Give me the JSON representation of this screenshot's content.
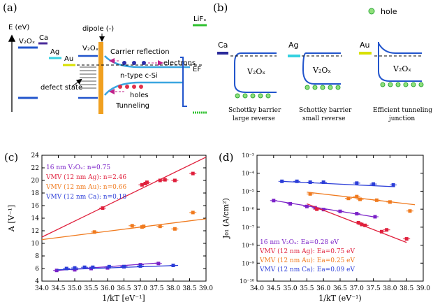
{
  "panels": {
    "a": {
      "label": "(a)",
      "energy_axis": "E (eV)",
      "materials": {
        "v2ox_left": "V₂Oₓ",
        "ca": "Ca",
        "ag": "Ag",
        "au": "Au",
        "v2ox_mid": "V₂Oₓ",
        "lifx": "LiFₓ"
      },
      "dipole": "dipole (-)",
      "carrier_reflection": "Carrier reflection",
      "electrons": "electrons",
      "ef": "EF",
      "ntype": "n-type c-Si",
      "defect_state": "defect state",
      "holes": "holes",
      "tunneling": "Tunneling",
      "colors": {
        "ca": "#4a2b9a",
        "ag": "#35d1e0",
        "au": "#d8e000",
        "lifx": "#2fc22f",
        "v2ox": "#2255cc",
        "dipole": "#f0a020",
        "band": "#3aa6e0",
        "electron": "#2d2da8",
        "hole": "#e0304a"
      }
    },
    "b": {
      "label": "(b)",
      "legend_hole": "hole",
      "columns": [
        {
          "metal": "Ca",
          "oxide": "V₂Oₓ",
          "caption1": "Schottky barrier",
          "caption2": "large reverse",
          "color": "#2a2a9a"
        },
        {
          "metal": "Ag",
          "oxide": "V₂Oₓ",
          "caption1": "Schottky barrier",
          "caption2": "small reverse",
          "color": "#35d1e0"
        },
        {
          "metal": "Au",
          "oxide": "V₂Oₓ",
          "caption1": "Efficient tunneling",
          "caption2": "junction",
          "color": "#d8e000"
        }
      ]
    }
  },
  "chart_data": [
    {
      "panel": "(c)",
      "type": "scatter",
      "xlabel": "1/kT [eV⁻¹]",
      "ylabel": "A [V⁻¹]",
      "xlim": [
        34.0,
        39.0
      ],
      "ylim": [
        4,
        24
      ],
      "xticks": [
        "34.0",
        "34.5",
        "35.0",
        "35.5",
        "36.0",
        "36.5",
        "37.0",
        "37.5",
        "38.0",
        "38.5",
        "39.0"
      ],
      "yticks": [
        "4",
        "6",
        "8",
        "10",
        "12",
        "14",
        "16",
        "18",
        "20",
        "22",
        "24"
      ],
      "series": [
        {
          "name": "16 nm V₂Oₓ: n=0.75",
          "color": "#7b22c8",
          "points": [
            [
              34.45,
              5.7
            ],
            [
              35.0,
              5.8
            ],
            [
              35.5,
              6.0
            ],
            [
              36.0,
              6.1
            ],
            [
              36.5,
              6.3
            ],
            [
              37.0,
              6.6
            ],
            [
              37.55,
              6.8
            ]
          ],
          "fit": [
            [
              34.45,
              5.7
            ],
            [
              37.6,
              6.9
            ]
          ]
        },
        {
          "name": "VMV (12 nm Ag): n=2.46",
          "color": "#e0203c",
          "points": [
            [
              35.85,
              15.6
            ],
            [
              37.05,
              19.3
            ],
            [
              37.15,
              19.5
            ],
            [
              37.2,
              19.7
            ],
            [
              37.6,
              20.0
            ],
            [
              37.75,
              20.1
            ],
            [
              38.05,
              20.0
            ],
            [
              38.6,
              21.1
            ]
          ],
          "fit": [
            [
              34.0,
              11.0
            ],
            [
              39.0,
              23.7
            ]
          ]
        },
        {
          "name": "VMV (12 nm Au): n=0.66",
          "color": "#f07a1e",
          "points": [
            [
              35.6,
              11.8
            ],
            [
              36.75,
              12.8
            ],
            [
              37.05,
              12.6
            ],
            [
              37.1,
              12.7
            ],
            [
              37.6,
              12.7
            ],
            [
              38.05,
              12.3
            ],
            [
              38.6,
              14.9
            ]
          ],
          "fit": [
            [
              34.0,
              10.6
            ],
            [
              39.0,
              13.9
            ]
          ]
        },
        {
          "name": "VMV (12 nm Ca): n=0.18",
          "color": "#2c3ed8",
          "points": [
            [
              34.75,
              6.0
            ],
            [
              35.0,
              6.1
            ],
            [
              35.3,
              6.2
            ],
            [
              35.55,
              6.2
            ],
            [
              36.05,
              6.3
            ],
            [
              36.5,
              6.3
            ],
            [
              37.0,
              6.4
            ],
            [
              38.0,
              6.5
            ]
          ],
          "fit": [
            [
              34.45,
              5.8
            ],
            [
              38.15,
              6.5
            ]
          ]
        }
      ]
    },
    {
      "panel": "(d)",
      "type": "scatter",
      "xlabel": "1/kT (eV⁻¹)",
      "ylabel": "J₀₁ (A/cm²)",
      "yscale": "log",
      "xlim": [
        34.0,
        39.0
      ],
      "ylim_exp": [
        -10,
        -3
      ],
      "xticks": [
        "34.0",
        "34.5",
        "35.0",
        "35.5",
        "36.0",
        "36.5",
        "37.0",
        "37.5",
        "38.0",
        "38.5",
        "39.0"
      ],
      "yticks": [
        "10⁻¹⁰",
        "10⁻⁹",
        "10⁻⁸",
        "10⁻⁷",
        "10⁻⁶",
        "10⁻⁵",
        "10⁻⁴",
        "10⁻³"
      ],
      "series": [
        {
          "name": "16 nm V₂Oₓ: Ea=0.28 eV",
          "color": "#7b22c8",
          "points_log10": [
            [
              34.5,
              -5.52
            ],
            [
              35.0,
              -5.7
            ],
            [
              35.5,
              -5.85
            ],
            [
              35.75,
              -5.92
            ],
            [
              36.0,
              -6.02
            ],
            [
              36.5,
              -6.12
            ],
            [
              37.0,
              -6.25
            ],
            [
              37.55,
              -6.42
            ]
          ],
          "fit_log10": [
            [
              34.45,
              -5.5
            ],
            [
              37.6,
              -6.45
            ]
          ]
        },
        {
          "name": "VMV (12 nm Ag): Ea=0.75 eV",
          "color": "#e0203c",
          "points_log10": [
            [
              35.8,
              -6.0
            ],
            [
              37.05,
              -6.75
            ],
            [
              37.15,
              -6.85
            ],
            [
              37.25,
              -6.9
            ],
            [
              37.75,
              -7.25
            ],
            [
              37.9,
              -7.15
            ],
            [
              38.5,
              -7.65
            ]
          ],
          "fit_log10": [
            [
              35.5,
              -5.7
            ],
            [
              38.5,
              -7.85
            ]
          ]
        },
        {
          "name": "VMV (12 nm Au): Ea=0.25 eV",
          "color": "#f07a1e",
          "points_log10": [
            [
              35.6,
              -5.15
            ],
            [
              36.75,
              -5.4
            ],
            [
              37.0,
              -5.3
            ],
            [
              37.1,
              -5.45
            ],
            [
              37.6,
              -5.5
            ],
            [
              38.0,
              -5.6
            ],
            [
              38.6,
              -6.1
            ]
          ],
          "fit_log10": [
            [
              35.5,
              -5.05
            ],
            [
              38.75,
              -5.75
            ]
          ]
        },
        {
          "name": "VMV (12 nm Ca): Ea=0.09 eV",
          "color": "#2c3ed8",
          "points_log10": [
            [
              34.75,
              -4.45
            ],
            [
              35.2,
              -4.45
            ],
            [
              35.6,
              -4.5
            ],
            [
              36.0,
              -4.5
            ],
            [
              37.0,
              -4.55
            ],
            [
              37.5,
              -4.6
            ],
            [
              38.1,
              -4.65
            ]
          ],
          "fit_log10": [
            [
              34.7,
              -4.45
            ],
            [
              38.15,
              -4.75
            ]
          ]
        }
      ]
    }
  ]
}
